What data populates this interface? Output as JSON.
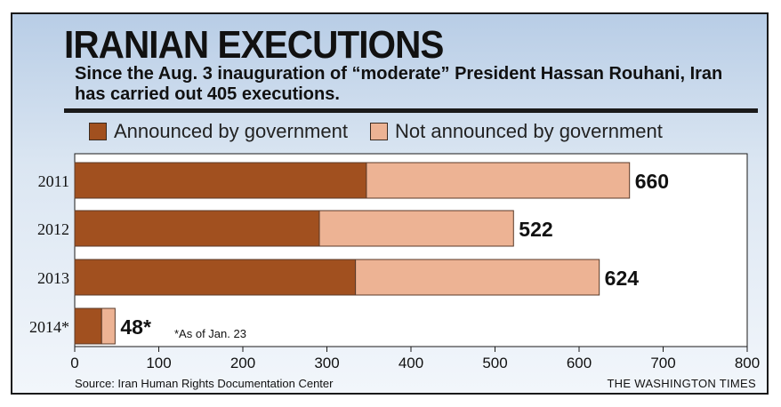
{
  "header": {
    "title": "IRANIAN EXECUTIONS",
    "subtitle": "Since the Aug. 3 inauguration of “moderate” President Hassan Rouhani, Iran has carried out 405 executions."
  },
  "legend": {
    "announced": "Announced by government",
    "not_announced": "Not announced by government"
  },
  "footer": {
    "source": "Source: Iran Human Rights Documentation Center",
    "credit": "THE WASHINGTON TIMES"
  },
  "colors": {
    "announced": "#a1501f",
    "not_announced": "#edb394"
  },
  "chart_data": {
    "type": "bar",
    "orientation": "horizontal",
    "stacked": true,
    "categories": [
      "2011",
      "2012",
      "2013",
      "2014*"
    ],
    "series": [
      {
        "name": "Announced by government",
        "values": [
          347,
          291,
          334,
          32
        ]
      },
      {
        "name": "Not announced by government",
        "values": [
          313,
          231,
          290,
          16
        ]
      }
    ],
    "totals": [
      660,
      522,
      624,
      48
    ],
    "total_labels": [
      "660",
      "522",
      "624",
      "48*"
    ],
    "annotation": "*As of Jan. 23",
    "xticks": [
      0,
      100,
      200,
      300,
      400,
      500,
      600,
      700,
      800
    ],
    "xlim": [
      0,
      800
    ],
    "legend_position": "top"
  }
}
